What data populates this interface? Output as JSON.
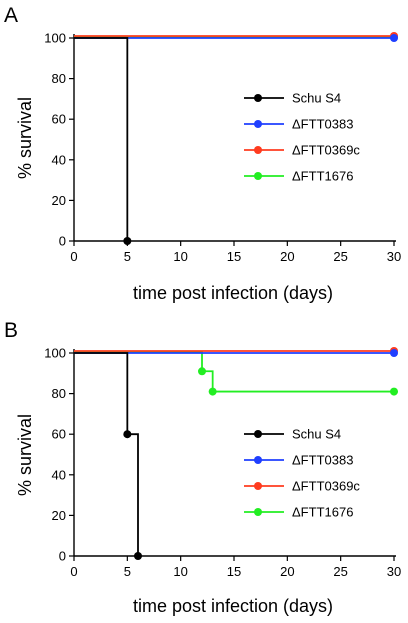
{
  "chart_data": [
    {
      "panel": "A",
      "type": "line",
      "subtype": "kaplan-meier step",
      "xlabel": "time post infection (days)",
      "ylabel": "% survival",
      "xlim": [
        0,
        30
      ],
      "ylim": [
        0,
        100
      ],
      "xticks": [
        0,
        5,
        10,
        15,
        20,
        25,
        30
      ],
      "yticks": [
        0,
        20,
        40,
        60,
        80,
        100
      ],
      "grid": false,
      "legend_position": "right-middle",
      "series": [
        {
          "name": "Schu S4",
          "color": "#000000",
          "points": [
            [
              0,
              100
            ],
            [
              5,
              0
            ]
          ],
          "markers": [
            [
              5,
              0
            ]
          ]
        },
        {
          "name": "ΔFTT0383",
          "color": "#1f3fff",
          "points": [
            [
              0,
              100
            ],
            [
              30,
              100
            ]
          ],
          "markers": [
            [
              30,
              100
            ]
          ]
        },
        {
          "name": "ΔFTT0369c",
          "color": "#ff3b1f",
          "points": [
            [
              0,
              100
            ],
            [
              30,
              100
            ]
          ],
          "markers": [
            [
              30,
              100
            ]
          ]
        },
        {
          "name": "ΔFTT1676",
          "color": "#22ee22",
          "points": [
            [
              0,
              100
            ],
            [
              30,
              100
            ]
          ],
          "markers": [
            [
              30,
              100
            ]
          ]
        }
      ]
    },
    {
      "panel": "B",
      "type": "line",
      "subtype": "kaplan-meier step",
      "xlabel": "time post infection (days)",
      "ylabel": "% survival",
      "xlim": [
        0,
        30
      ],
      "ylim": [
        0,
        100
      ],
      "xticks": [
        0,
        5,
        10,
        15,
        20,
        25,
        30
      ],
      "yticks": [
        0,
        20,
        40,
        60,
        80,
        100
      ],
      "grid": false,
      "legend_position": "right-lower",
      "series": [
        {
          "name": "Schu S4",
          "color": "#000000",
          "points": [
            [
              0,
              100
            ],
            [
              5,
              60
            ],
            [
              6,
              0
            ]
          ],
          "markers": [
            [
              5,
              60
            ],
            [
              6,
              0
            ]
          ]
        },
        {
          "name": "ΔFTT0383",
          "color": "#1f3fff",
          "points": [
            [
              0,
              100
            ],
            [
              30,
              100
            ]
          ],
          "markers": [
            [
              30,
              100
            ]
          ]
        },
        {
          "name": "ΔFTT0369c",
          "color": "#ff3b1f",
          "points": [
            [
              0,
              100
            ],
            [
              30,
              100
            ]
          ],
          "markers": [
            [
              30,
              100
            ]
          ]
        },
        {
          "name": "ΔFTT1676",
          "color": "#22ee22",
          "points": [
            [
              0,
              100
            ],
            [
              12,
              91
            ],
            [
              13,
              81
            ],
            [
              30,
              81
            ]
          ],
          "markers": [
            [
              12,
              91
            ],
            [
              13,
              81
            ],
            [
              30,
              81
            ]
          ]
        }
      ]
    }
  ]
}
